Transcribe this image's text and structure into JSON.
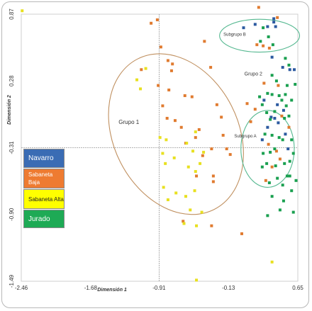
{
  "chart_data": {
    "type": "scatter",
    "xlabel": "Dimensión 1",
    "ylabel": "Dimensión 2",
    "xlim": [
      -2.46,
      0.65
    ],
    "ylim": [
      -1.49,
      0.87
    ],
    "xticks": [
      "-2.46",
      "-1.68",
      "-0.91",
      "-0.13",
      "0.65"
    ],
    "xtick_values": [
      -2.46,
      -1.68,
      -0.91,
      -0.13,
      0.65
    ],
    "yticks": [
      "-1.49",
      "-0.90",
      "-0.31",
      "0.28",
      "0.87"
    ],
    "ytick_values": [
      -1.49,
      -0.9,
      -0.31,
      0.28,
      0.87
    ],
    "reference_lines": {
      "x": -0.91,
      "y": -0.31
    },
    "legend": [
      {
        "label": "Navarro",
        "color": "#3a6cb4",
        "text_color": "#ffffff"
      },
      {
        "label": "Sabaneta Baja",
        "color": "#ee7b31",
        "text_color": "#ffffff"
      },
      {
        "label": "Sabaneta Alta",
        "color": "#ffff00",
        "text_color": "#222222"
      },
      {
        "label": "Jurado",
        "color": "#1eaa55",
        "text_color": "#ffffff"
      }
    ],
    "groups": [
      {
        "label": "Grupo 1",
        "center": [
          -0.72,
          -0.19
        ],
        "rx_data": 0.95,
        "ry_data": 0.55,
        "rotate_deg": 63,
        "color": "#c09060"
      },
      {
        "label": "Grupo 2",
        "center": [
          0.31,
          -0.32
        ],
        "rx_data": 0.3,
        "ry_data": 0.34,
        "rotate_deg": 0,
        "color": "#55b890"
      },
      {
        "label": "Subgrupo B",
        "center": [
          0.22,
          0.68
        ],
        "rx_data": 0.45,
        "ry_data": 0.145,
        "rotate_deg": 0,
        "color": "#55b890"
      }
    ],
    "group_labels": [
      {
        "text": "Grupo 1",
        "x": -1.25,
        "y": -0.1,
        "size": 8
      },
      {
        "text": "Grupo 2",
        "x": 0.15,
        "y": 0.33,
        "size": 7
      },
      {
        "text": "Subgrupo B",
        "x": -0.06,
        "y": 0.68,
        "size": 6
      },
      {
        "text": "Subgrupo A",
        "x": 0.06,
        "y": -0.22,
        "size": 6
      }
    ],
    "series": [
      {
        "name": "Navarro",
        "color": "#2c5aa0",
        "points": [
          [
            0.38,
            0.83
          ],
          [
            0.38,
            0.8
          ],
          [
            0.4,
            0.76
          ],
          [
            0.31,
            0.76
          ],
          [
            0.17,
            0.78
          ],
          [
            0.04,
            0.75
          ],
          [
            0.36,
            0.49
          ],
          [
            0.48,
            0.4
          ],
          [
            0.56,
            0.38
          ],
          [
            0.27,
            0.11
          ],
          [
            0.42,
            0.07
          ],
          [
            0.49,
            0.02
          ],
          [
            0.35,
            -0.04
          ],
          [
            0.39,
            -0.05
          ],
          [
            0.43,
            -0.09
          ],
          [
            0.31,
            -0.13
          ],
          [
            0.25,
            -0.24
          ],
          [
            0.51,
            -0.19
          ],
          [
            0.54,
            -0.32
          ],
          [
            0.61,
            0.38
          ]
        ]
      },
      {
        "name": "Sabaneta Baja",
        "color": "#e07b30",
        "points": [
          [
            -0.4,
            0.63
          ],
          [
            -0.62,
            0.15
          ],
          [
            -0.54,
            0.14
          ],
          [
            -0.93,
            0.82
          ],
          [
            -1.0,
            0.79
          ],
          [
            -0.89,
            0.58
          ],
          [
            -0.81,
            0.46
          ],
          [
            -0.76,
            0.43
          ],
          [
            -0.77,
            0.37
          ],
          [
            -0.92,
            0.24
          ],
          [
            -0.8,
            0.2
          ],
          [
            -0.82,
            -0.05
          ],
          [
            -0.73,
            -0.07
          ],
          [
            -1.11,
            0.38
          ],
          [
            -0.87,
            0.06
          ],
          [
            -0.66,
            -0.13
          ],
          [
            -0.5,
            -0.22
          ],
          [
            -0.42,
            -0.38
          ],
          [
            -0.46,
            -0.15
          ],
          [
            -0.26,
            0.07
          ],
          [
            -0.21,
            -0.04
          ],
          [
            -0.19,
            -0.2
          ],
          [
            -0.3,
            -0.56
          ],
          [
            -0.3,
            -0.61
          ],
          [
            0.21,
            0.93
          ],
          [
            0.19,
            0.6
          ],
          [
            0.26,
            0.59
          ],
          [
            0.33,
            0.57
          ],
          [
            0.42,
            0.84
          ],
          [
            0.27,
            0.26
          ],
          [
            0.43,
            0.24
          ],
          [
            0.08,
            0.08
          ],
          [
            0.17,
            0.03
          ],
          [
            0.12,
            -0.08
          ],
          [
            0.47,
            -0.03
          ],
          [
            0.55,
            -0.13
          ],
          [
            0.32,
            -0.28
          ],
          [
            0.41,
            -0.34
          ],
          [
            0.45,
            -0.41
          ],
          [
            0.36,
            -0.48
          ],
          [
            0.29,
            -0.6
          ],
          [
            -0.11,
            -0.37
          ],
          [
            -0.15,
            -0.32
          ],
          [
            -0.32,
            -0.32
          ],
          [
            -0.64,
            -0.96
          ],
          [
            -0.32,
            -1.0
          ],
          [
            0.02,
            -1.07
          ],
          [
            -0.49,
            -0.56
          ],
          [
            -0.61,
            -0.27
          ],
          [
            -0.33,
            0.4
          ]
        ]
      },
      {
        "name": "Sabaneta Alta",
        "color": "#e8e020",
        "points": [
          [
            -2.45,
            0.9
          ],
          [
            -1.06,
            0.39
          ],
          [
            -1.16,
            0.29
          ],
          [
            -1.12,
            0.21
          ],
          [
            -0.9,
            -0.22
          ],
          [
            -0.83,
            -0.24
          ],
          [
            -0.87,
            -0.36
          ],
          [
            -0.84,
            -0.45
          ],
          [
            -0.74,
            -0.4
          ],
          [
            -0.6,
            -0.27
          ],
          [
            -0.53,
            -0.34
          ],
          [
            -0.58,
            -0.48
          ],
          [
            -0.5,
            -0.52
          ],
          [
            -0.51,
            -0.69
          ],
          [
            -0.61,
            -0.74
          ],
          [
            -0.81,
            -0.77
          ],
          [
            -0.72,
            -0.71
          ],
          [
            -0.56,
            -0.86
          ],
          [
            -0.43,
            -0.88
          ],
          [
            -0.63,
            -0.98
          ],
          [
            -0.49,
            -1.0
          ],
          [
            -0.45,
            -0.45
          ],
          [
            -0.5,
            -0.17
          ],
          [
            -0.41,
            -0.35
          ],
          [
            -0.86,
            -0.66
          ],
          [
            0.36,
            -1.32
          ],
          [
            -0.49,
            -1.48
          ]
        ]
      },
      {
        "name": "Jurado",
        "color": "#1aa050",
        "points": [
          [
            0.26,
            0.75
          ],
          [
            0.32,
            0.67
          ],
          [
            0.23,
            0.63
          ],
          [
            0.37,
            0.6
          ],
          [
            0.51,
            0.48
          ],
          [
            0.31,
            0.17
          ],
          [
            0.36,
            0.16
          ],
          [
            0.44,
            0.15
          ],
          [
            0.51,
            0.16
          ],
          [
            0.25,
            0.07
          ],
          [
            0.3,
            0.0
          ],
          [
            0.34,
            -0.06
          ],
          [
            0.39,
            0.01
          ],
          [
            0.47,
            0.11
          ],
          [
            0.52,
            0.06
          ],
          [
            0.5,
            -0.05
          ],
          [
            0.55,
            -0.03
          ],
          [
            0.28,
            -0.19
          ],
          [
            0.36,
            -0.2
          ],
          [
            0.44,
            -0.22
          ],
          [
            0.48,
            -0.24
          ],
          [
            0.58,
            -0.24
          ],
          [
            0.6,
            -0.36
          ],
          [
            0.39,
            -0.32
          ],
          [
            0.34,
            -0.35
          ],
          [
            0.26,
            -0.36
          ],
          [
            0.3,
            -0.45
          ],
          [
            0.25,
            -0.48
          ],
          [
            0.4,
            -0.47
          ],
          [
            0.5,
            -0.45
          ],
          [
            0.56,
            -0.43
          ],
          [
            0.42,
            -0.58
          ],
          [
            0.48,
            -0.64
          ],
          [
            0.53,
            -0.56
          ],
          [
            0.36,
            -0.74
          ],
          [
            0.49,
            -0.78
          ],
          [
            0.58,
            -0.69
          ],
          [
            0.63,
            -0.6
          ],
          [
            0.45,
            -0.86
          ],
          [
            0.31,
            -0.91
          ],
          [
            0.6,
            -0.88
          ],
          [
            0.36,
            0.33
          ],
          [
            0.55,
            0.42
          ],
          [
            0.62,
            0.25
          ],
          [
            0.41,
            0.28
          ],
          [
            0.22,
            0.14
          ],
          [
            0.56,
            -0.56
          ],
          [
            0.33,
            -0.62
          ],
          [
            0.53,
            0.24
          ],
          [
            0.58,
            0.11
          ]
        ]
      }
    ]
  }
}
